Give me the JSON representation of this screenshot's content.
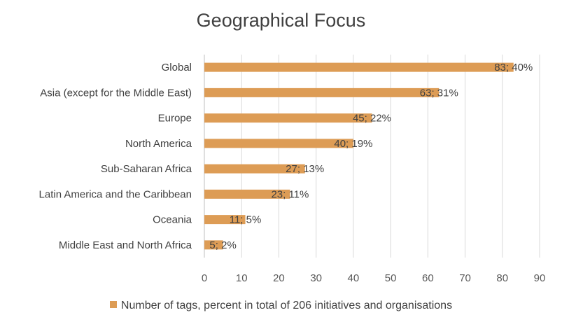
{
  "chart_data": {
    "type": "bar",
    "orientation": "horizontal",
    "title": "Geographical Focus",
    "categories": [
      "Global",
      "Asia (except for the Middle East)",
      "Europe",
      "North America",
      "Sub-Saharan Africa",
      "Latin America and the Caribbean",
      "Oceania",
      "Middle East and North Africa"
    ],
    "series": [
      {
        "name": "Number of tags, percent in total of 206 initiatives and organisations",
        "color": "#dd9c55",
        "values": [
          83,
          63,
          45,
          40,
          27,
          23,
          11,
          5
        ],
        "labels": [
          "83; 40%",
          "63; 31%",
          "45; 22%",
          "40; 19%",
          "27; 13%",
          "23; 11%",
          "11; 5%",
          "5; 2%"
        ]
      }
    ],
    "xlim": [
      0,
      90
    ],
    "xticks": [
      0,
      10,
      20,
      30,
      40,
      50,
      60,
      70,
      80,
      90
    ],
    "xlabel": "",
    "ylabel": "",
    "grid": "vertical",
    "legend": "bottom"
  }
}
